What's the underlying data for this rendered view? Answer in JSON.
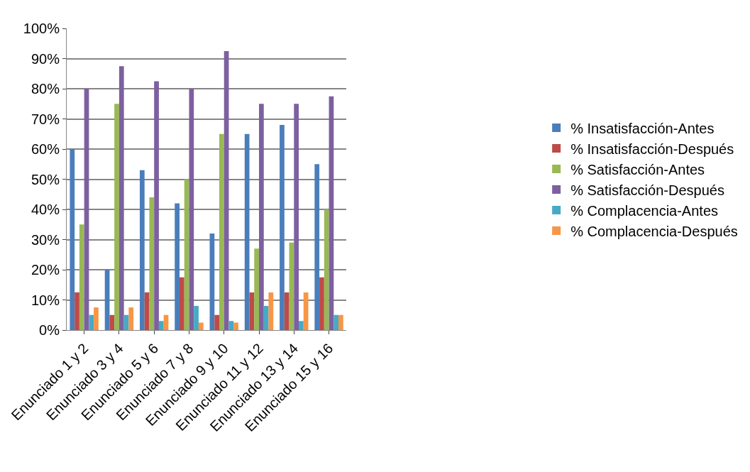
{
  "chart_data": {
    "type": "bar",
    "categories": [
      "Enunciado 1 y 2",
      "Enunciado 3 y 4",
      "Enunciado 5 y 6",
      "Enunciado 7 y 8",
      "Enunciado 9 y 10",
      "Enunciado 11 y 12",
      "Enunciado 13 y 14",
      "Enunciado 15 y 16"
    ],
    "series": [
      {
        "name": "% Insatisfacción-Antes",
        "color": "#4a7ebb",
        "values": [
          60,
          20,
          53,
          42,
          32,
          65,
          68,
          55
        ]
      },
      {
        "name": "% Insatisfacción-Después",
        "color": "#be4b48",
        "values": [
          12.5,
          5,
          12.5,
          17.5,
          5,
          12.5,
          12.5,
          17.5
        ]
      },
      {
        "name": "% Satisfacción-Antes",
        "color": "#98b954",
        "values": [
          35,
          75,
          44,
          50,
          65,
          27,
          29,
          40
        ]
      },
      {
        "name": "% Satisfacción-Después",
        "color": "#7d60a0",
        "values": [
          80,
          87.5,
          82.5,
          80,
          92.5,
          75,
          75,
          77.5
        ]
      },
      {
        "name": "% Complacencia-Antes",
        "color": "#46aac5",
        "values": [
          5,
          5,
          3,
          8,
          3,
          8,
          3,
          5
        ]
      },
      {
        "name": "% Complacencia-Después",
        "color": "#f79646",
        "values": [
          7.5,
          7.5,
          5,
          2.5,
          2.5,
          12.5,
          12.5,
          5
        ]
      }
    ],
    "ylim": [
      0,
      100
    ],
    "yticks": [
      {
        "value": 0,
        "label": "0%"
      },
      {
        "value": 10,
        "label": "10%"
      },
      {
        "value": 20,
        "label": "20%"
      },
      {
        "value": 30,
        "label": "30%"
      },
      {
        "value": 40,
        "label": "40%"
      },
      {
        "value": 50,
        "label": "50%"
      },
      {
        "value": 60,
        "label": "60%"
      },
      {
        "value": 70,
        "label": "70%"
      },
      {
        "value": 80,
        "label": "80%"
      },
      {
        "value": 90,
        "label": "90%"
      },
      {
        "value": 100,
        "label": "100%"
      }
    ],
    "grid": "y",
    "legend": "right"
  }
}
